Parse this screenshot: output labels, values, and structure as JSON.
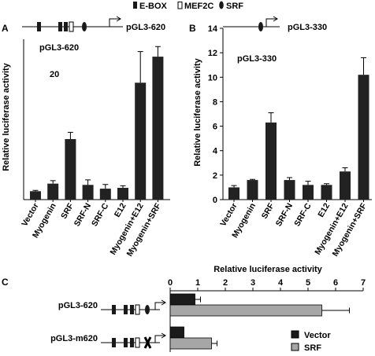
{
  "legend_top": {
    "items": [
      {
        "label": "E-BOX",
        "symbol": "filled-rect"
      },
      {
        "label": "MEF2C",
        "symbol": "open-rect"
      },
      {
        "label": "SRF",
        "symbol": "filled-ellipse"
      }
    ]
  },
  "panel_labels": {
    "a": "A",
    "b": "B",
    "c": "C"
  },
  "chart_data": [
    {
      "type": "bar",
      "panel": "A",
      "construct_label": "pGL3-620",
      "inner_title": "pGL3-620",
      "annotation": "20",
      "ylabel": "Relative luciferase activity",
      "categories": [
        "Vector",
        "Myogenin",
        "SRF",
        "SRF-N",
        "SRF-C",
        "E12",
        "Myogenin+E12",
        "Myogenin+SRF"
      ],
      "values": [
        1.0,
        1.9,
        7.2,
        1.75,
        1.3,
        1.4,
        13.9,
        17.0
      ],
      "errors": [
        0.1,
        0.35,
        0.8,
        0.6,
        0.5,
        0.25,
        3.7,
        1.2
      ],
      "ylim": [
        0,
        20
      ],
      "yticks": [],
      "color": "#222222"
    },
    {
      "type": "bar",
      "panel": "B",
      "construct_label": "pGL3-330",
      "inner_title": "pGL3-330",
      "ylabel": "Relative luciferase activity",
      "categories": [
        "Vector",
        "Myogenin",
        "SRF",
        "SRF-N",
        "SRF-C",
        "E12",
        "Myogenin+E12",
        "Myogenin+SRF"
      ],
      "values": [
        1.0,
        1.6,
        6.3,
        1.6,
        1.2,
        1.2,
        2.3,
        10.2
      ],
      "errors": [
        0.15,
        0.05,
        0.8,
        0.2,
        0.3,
        0.1,
        0.3,
        1.4
      ],
      "ylim": [
        0,
        14
      ],
      "yticks": [
        0,
        2,
        4,
        6,
        8,
        10,
        12,
        14
      ],
      "color": "#222222"
    },
    {
      "type": "bar",
      "orientation": "horizontal",
      "panel": "C",
      "title": "Relative luciferase activity",
      "categories": [
        "pGL3-620",
        "pGL3-m620"
      ],
      "series": [
        {
          "name": "Vector",
          "values": [
            0.9,
            0.5
          ],
          "errors": [
            0.2,
            0.0
          ],
          "color": "#1a1a1a"
        },
        {
          "name": "SRF",
          "values": [
            5.5,
            1.5
          ],
          "errors": [
            1.0,
            0.2
          ],
          "color": "#a6a6a6"
        }
      ],
      "xlim": [
        0,
        7
      ],
      "xticks": [
        0,
        1,
        2,
        3,
        4,
        5,
        6,
        7
      ],
      "legend": "bottom-right"
    }
  ]
}
